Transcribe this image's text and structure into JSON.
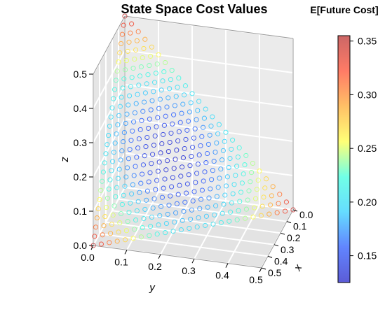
{
  "chart_data": {
    "type": "scatter",
    "title": "State Space Cost Values",
    "colorbar_title": "E[Future Cost]",
    "xlabel": "x",
    "ylabel": "y",
    "zlabel": "z",
    "xlim": [
      0,
      0.5
    ],
    "ylim": [
      0,
      0.5
    ],
    "zlim": [
      0,
      0.5
    ],
    "x_ticks": [
      "0.0",
      "0.1",
      "0.2",
      "0.3",
      "0.4",
      "0.5"
    ],
    "y_ticks": [
      "0.0",
      "0.1",
      "0.2",
      "0.3",
      "0.4",
      "0.5"
    ],
    "z_ticks": [
      "0.0",
      "0.1",
      "0.2",
      "0.3",
      "0.4",
      "0.5"
    ],
    "colorbar_ticks": [
      "0.15",
      "0.20",
      "0.25",
      "0.30",
      "0.35"
    ],
    "colorbar_range": [
      0.125,
      0.355
    ],
    "colormap": [
      "#3333cc",
      "#3a66ff",
      "#3fd4ff",
      "#4dffe0",
      "#ffff55",
      "#ffb040",
      "#ff5a40",
      "#c04040"
    ],
    "surface": "x + y + z = 0.5",
    "grid": true,
    "grid_step": 0.02,
    "marker": "open circle",
    "points_note": "cost values range from about 0.13 at the center of the simplex to about 0.35 at the corners"
  }
}
